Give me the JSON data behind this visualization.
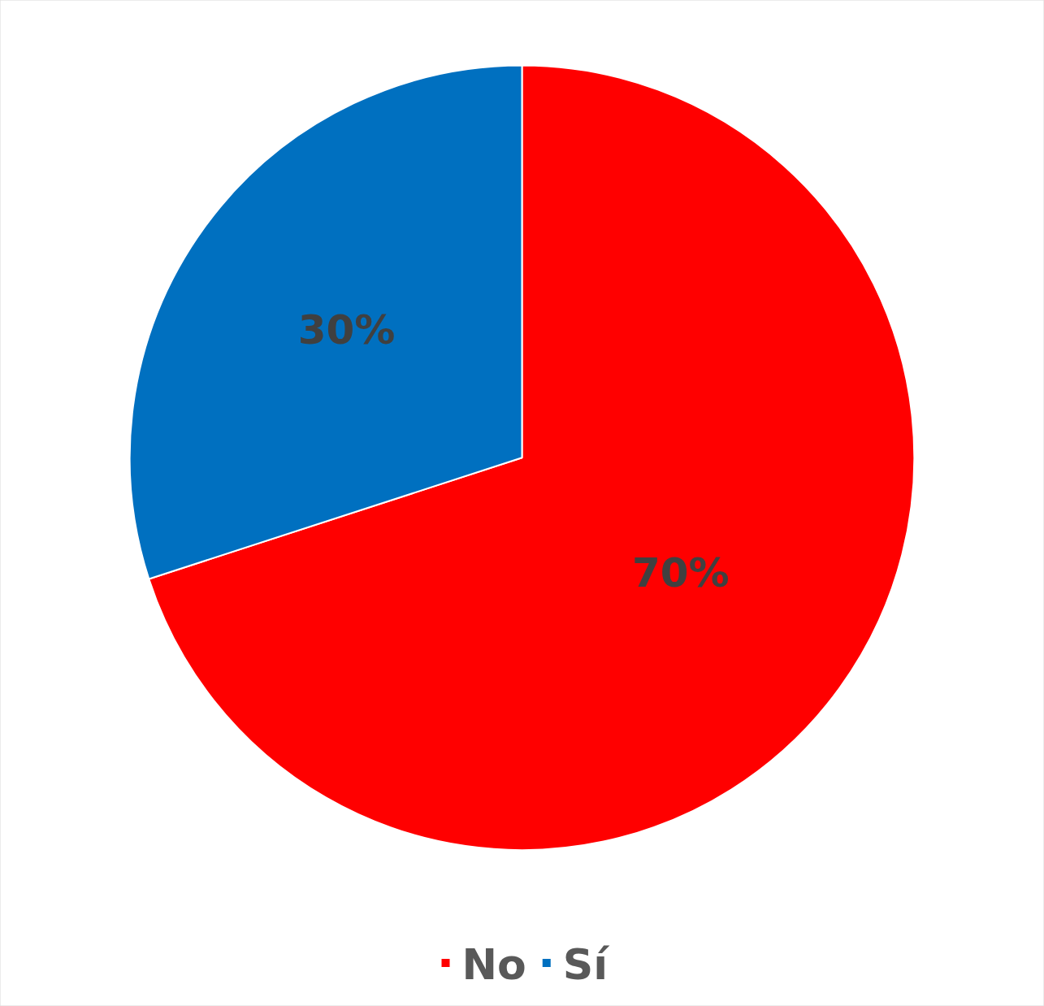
{
  "chart_data": {
    "type": "pie",
    "categories": [
      "No",
      "Sí"
    ],
    "values": [
      70,
      30
    ],
    "colors": [
      "#ff0000",
      "#0070c0"
    ],
    "value_labels": [
      "70%",
      "30%"
    ],
    "legend": "bottom"
  }
}
